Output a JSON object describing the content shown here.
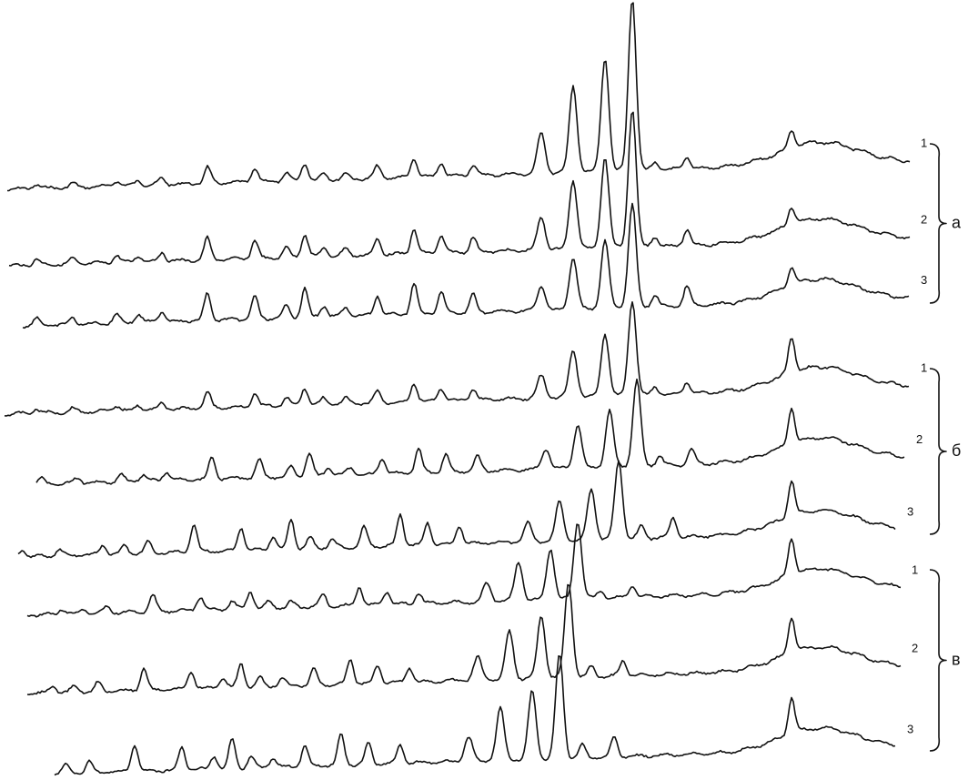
{
  "groups": [
    {
      "label": "а",
      "traces": [
        {
          "label": "1"
        },
        {
          "label": "2"
        },
        {
          "label": "3"
        }
      ]
    },
    {
      "label": "б",
      "traces": [
        {
          "label": "1"
        },
        {
          "label": "2"
        },
        {
          "label": "3"
        }
      ]
    },
    {
      "label": "в",
      "traces": [
        {
          "label": "1"
        },
        {
          "label": "2"
        },
        {
          "label": "3"
        }
      ]
    }
  ]
}
